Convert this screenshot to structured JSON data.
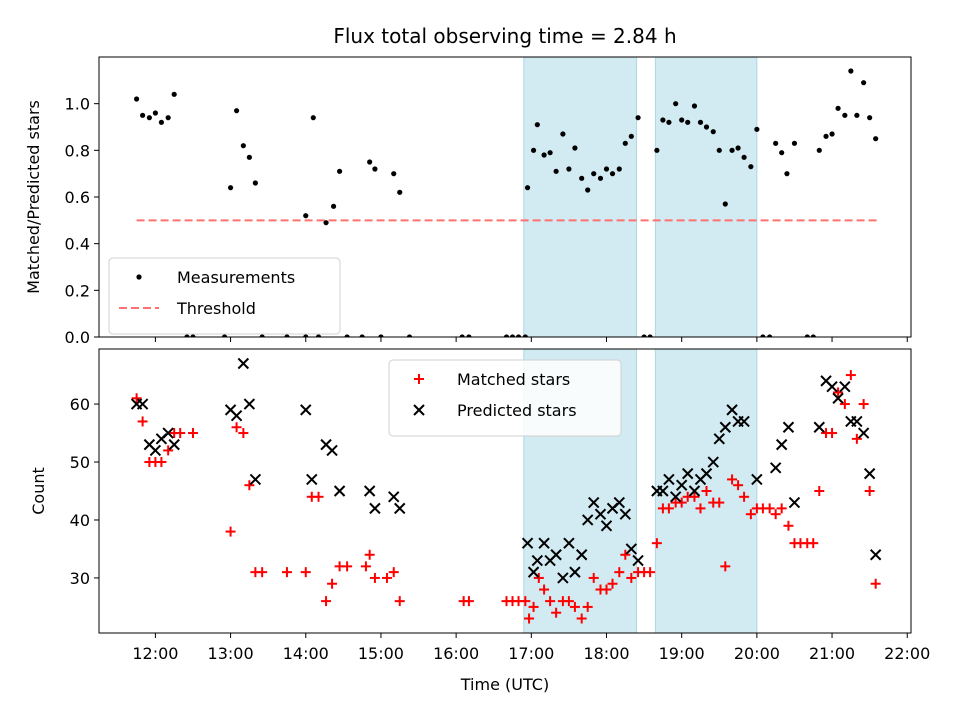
{
  "title": "Flux total observing time = 2.84 h",
  "xlabel": "Time (UTC)",
  "colors": {
    "band": "#add8e6",
    "threshold": "#ff7070",
    "matched": "#ff0000",
    "predicted": "#000000",
    "measurements": "#000000"
  },
  "chart_data": [
    {
      "type": "scatter",
      "panel": "top",
      "ylabel": "Matched/Predicted stars",
      "ylim": [
        0,
        1.2
      ],
      "xlim": [
        11.25,
        22.05
      ],
      "yticks": [
        0.0,
        0.2,
        0.4,
        0.6,
        0.8,
        1.0
      ],
      "yticklabels": [
        "0.0",
        "0.2",
        "0.4",
        "0.6",
        "0.8",
        "1.0"
      ],
      "legend_position": "lower-left",
      "threshold": {
        "name": "Threshold",
        "value": 0.5,
        "x_range": [
          11.75,
          21.6
        ]
      },
      "shaded_x_ranges": [
        [
          16.9,
          18.4
        ],
        [
          18.65,
          20.0
        ]
      ],
      "series": [
        {
          "name": "Measurements",
          "marker": "dot",
          "points": [
            [
              11.75,
              1.02
            ],
            [
              11.83,
              0.95
            ],
            [
              11.92,
              0.94
            ],
            [
              12.0,
              0.96
            ],
            [
              12.08,
              0.92
            ],
            [
              12.17,
              0.94
            ],
            [
              12.25,
              1.04
            ],
            [
              12.42,
              0.0
            ],
            [
              12.5,
              0.0
            ],
            [
              12.92,
              0.0
            ],
            [
              13.0,
              0.64
            ],
            [
              13.08,
              0.97
            ],
            [
              13.17,
              0.82
            ],
            [
              13.25,
              0.77
            ],
            [
              13.33,
              0.66
            ],
            [
              13.42,
              0.0
            ],
            [
              13.75,
              0.0
            ],
            [
              14.0,
              0.52
            ],
            [
              14.0,
              0.0
            ],
            [
              14.1,
              0.94
            ],
            [
              14.17,
              0.0
            ],
            [
              14.27,
              0.49
            ],
            [
              14.37,
              0.56
            ],
            [
              14.45,
              0.71
            ],
            [
              14.55,
              0.0
            ],
            [
              14.75,
              0.0
            ],
            [
              14.85,
              0.75
            ],
            [
              14.92,
              0.72
            ],
            [
              15.0,
              0.0
            ],
            [
              15.17,
              0.7
            ],
            [
              15.25,
              0.62
            ],
            [
              15.38,
              0.0
            ],
            [
              16.08,
              0.0
            ],
            [
              16.17,
              0.0
            ],
            [
              16.67,
              0.0
            ],
            [
              16.75,
              0.0
            ],
            [
              16.83,
              0.0
            ],
            [
              16.92,
              0.0
            ],
            [
              16.95,
              0.64
            ],
            [
              17.03,
              0.8
            ],
            [
              17.08,
              0.91
            ],
            [
              17.17,
              0.78
            ],
            [
              17.25,
              0.79
            ],
            [
              17.33,
              0.71
            ],
            [
              17.42,
              0.87
            ],
            [
              17.5,
              0.72
            ],
            [
              17.58,
              0.81
            ],
            [
              17.67,
              0.68
            ],
            [
              17.75,
              0.63
            ],
            [
              17.83,
              0.7
            ],
            [
              17.92,
              0.68
            ],
            [
              18.0,
              0.72
            ],
            [
              18.08,
              0.7
            ],
            [
              18.17,
              0.72
            ],
            [
              18.25,
              0.83
            ],
            [
              18.33,
              0.86
            ],
            [
              18.42,
              0.94
            ],
            [
              18.5,
              0.0
            ],
            [
              18.58,
              0.0
            ],
            [
              18.67,
              0.8
            ],
            [
              18.75,
              0.93
            ],
            [
              18.83,
              0.92
            ],
            [
              18.92,
              1.0
            ],
            [
              19.0,
              0.93
            ],
            [
              19.08,
              0.92
            ],
            [
              19.17,
              0.99
            ],
            [
              19.25,
              0.92
            ],
            [
              19.33,
              0.9
            ],
            [
              19.42,
              0.88
            ],
            [
              19.5,
              0.8
            ],
            [
              19.58,
              0.57
            ],
            [
              19.67,
              0.8
            ],
            [
              19.75,
              0.81
            ],
            [
              19.83,
              0.77
            ],
            [
              19.92,
              0.73
            ],
            [
              20.0,
              0.89
            ],
            [
              20.08,
              0.0
            ],
            [
              20.17,
              0.0
            ],
            [
              20.25,
              0.83
            ],
            [
              20.33,
              0.79
            ],
            [
              20.4,
              0.7
            ],
            [
              20.5,
              0.83
            ],
            [
              20.67,
              0.0
            ],
            [
              20.75,
              0.0
            ],
            [
              20.83,
              0.8
            ],
            [
              20.92,
              0.86
            ],
            [
              21.0,
              0.87
            ],
            [
              21.08,
              0.98
            ],
            [
              21.17,
              0.95
            ],
            [
              21.25,
              1.14
            ],
            [
              21.33,
              0.95
            ],
            [
              21.42,
              1.09
            ],
            [
              21.5,
              0.94
            ],
            [
              21.58,
              0.85
            ]
          ]
        }
      ]
    },
    {
      "type": "scatter",
      "panel": "bottom",
      "ylabel": "Count",
      "ylim": [
        20.5,
        69.5
      ],
      "xlim": [
        11.25,
        22.05
      ],
      "yticks": [
        30,
        40,
        50,
        60
      ],
      "yticklabels": [
        "30",
        "40",
        "50",
        "60"
      ],
      "xticks": [
        12,
        13,
        14,
        15,
        16,
        17,
        18,
        19,
        20,
        21,
        22
      ],
      "xticklabels": [
        "12:00",
        "13:00",
        "14:00",
        "15:00",
        "16:00",
        "17:00",
        "18:00",
        "19:00",
        "20:00",
        "21:00",
        "22:00"
      ],
      "legend_position": "upper-center",
      "shaded_x_ranges": [
        [
          16.9,
          18.4
        ],
        [
          18.65,
          20.0
        ]
      ],
      "series": [
        {
          "name": "Matched stars",
          "marker": "plus",
          "points": [
            [
              11.75,
              61
            ],
            [
              11.83,
              57
            ],
            [
              11.92,
              50
            ],
            [
              12.0,
              50
            ],
            [
              12.08,
              50
            ],
            [
              12.17,
              52
            ],
            [
              12.25,
              55
            ],
            [
              12.33,
              55
            ],
            [
              12.5,
              55
            ],
            [
              13.0,
              38
            ],
            [
              13.08,
              56
            ],
            [
              13.17,
              55
            ],
            [
              13.25,
              46
            ],
            [
              13.33,
              31
            ],
            [
              13.42,
              31
            ],
            [
              13.75,
              31
            ],
            [
              14.0,
              31
            ],
            [
              14.08,
              44
            ],
            [
              14.17,
              44
            ],
            [
              14.27,
              26
            ],
            [
              14.35,
              29
            ],
            [
              14.45,
              32
            ],
            [
              14.55,
              32
            ],
            [
              14.8,
              32
            ],
            [
              14.85,
              34
            ],
            [
              14.92,
              30
            ],
            [
              15.08,
              30
            ],
            [
              15.17,
              31
            ],
            [
              15.25,
              26
            ],
            [
              16.1,
              26
            ],
            [
              16.17,
              26
            ],
            [
              16.67,
              26
            ],
            [
              16.75,
              26
            ],
            [
              16.83,
              26
            ],
            [
              16.92,
              26
            ],
            [
              16.97,
              23
            ],
            [
              17.03,
              25
            ],
            [
              17.1,
              30
            ],
            [
              17.17,
              28
            ],
            [
              17.25,
              26
            ],
            [
              17.33,
              24
            ],
            [
              17.42,
              26
            ],
            [
              17.5,
              26
            ],
            [
              17.58,
              25
            ],
            [
              17.67,
              23
            ],
            [
              17.75,
              25
            ],
            [
              17.83,
              30
            ],
            [
              17.92,
              28
            ],
            [
              18.0,
              28
            ],
            [
              18.08,
              29
            ],
            [
              18.17,
              31
            ],
            [
              18.25,
              34
            ],
            [
              18.33,
              30
            ],
            [
              18.42,
              31
            ],
            [
              18.5,
              31
            ],
            [
              18.58,
              31
            ],
            [
              18.67,
              36
            ],
            [
              18.75,
              42
            ],
            [
              18.83,
              42
            ],
            [
              18.92,
              43
            ],
            [
              19.0,
              43
            ],
            [
              19.08,
              44
            ],
            [
              19.17,
              44
            ],
            [
              19.25,
              42
            ],
            [
              19.33,
              45
            ],
            [
              19.42,
              43
            ],
            [
              19.5,
              43
            ],
            [
              19.58,
              32
            ],
            [
              19.67,
              47
            ],
            [
              19.75,
              46
            ],
            [
              19.83,
              44
            ],
            [
              19.92,
              41
            ],
            [
              20.0,
              42
            ],
            [
              20.08,
              42
            ],
            [
              20.17,
              42
            ],
            [
              20.25,
              41
            ],
            [
              20.33,
              42
            ],
            [
              20.42,
              39
            ],
            [
              20.5,
              36
            ],
            [
              20.58,
              36
            ],
            [
              20.67,
              36
            ],
            [
              20.75,
              36
            ],
            [
              20.83,
              45
            ],
            [
              20.92,
              55
            ],
            [
              21.0,
              55
            ],
            [
              21.08,
              62
            ],
            [
              21.17,
              60
            ],
            [
              21.25,
              65
            ],
            [
              21.33,
              54
            ],
            [
              21.42,
              60
            ],
            [
              21.5,
              45
            ],
            [
              21.58,
              29
            ]
          ]
        },
        {
          "name": "Predicted stars",
          "marker": "x",
          "points": [
            [
              11.75,
              60
            ],
            [
              11.83,
              60
            ],
            [
              11.92,
              53
            ],
            [
              12.0,
              52
            ],
            [
              12.08,
              54
            ],
            [
              12.17,
              55
            ],
            [
              12.25,
              53
            ],
            [
              13.0,
              59
            ],
            [
              13.08,
              58
            ],
            [
              13.17,
              67
            ],
            [
              13.25,
              60
            ],
            [
              13.33,
              47
            ],
            [
              14.0,
              59
            ],
            [
              14.08,
              47
            ],
            [
              14.27,
              53
            ],
            [
              14.35,
              52
            ],
            [
              14.45,
              45
            ],
            [
              14.85,
              45
            ],
            [
              14.92,
              42
            ],
            [
              15.17,
              44
            ],
            [
              15.25,
              42
            ],
            [
              16.95,
              36
            ],
            [
              17.03,
              31
            ],
            [
              17.08,
              33
            ],
            [
              17.17,
              36
            ],
            [
              17.25,
              33
            ],
            [
              17.33,
              34
            ],
            [
              17.42,
              30
            ],
            [
              17.5,
              36
            ],
            [
              17.58,
              31
            ],
            [
              17.67,
              34
            ],
            [
              17.75,
              40
            ],
            [
              17.83,
              43
            ],
            [
              17.92,
              41
            ],
            [
              18.0,
              39
            ],
            [
              18.08,
              42
            ],
            [
              18.17,
              43
            ],
            [
              18.25,
              41
            ],
            [
              18.33,
              35
            ],
            [
              18.42,
              33
            ],
            [
              18.67,
              45
            ],
            [
              18.75,
              45
            ],
            [
              18.83,
              47
            ],
            [
              18.92,
              44
            ],
            [
              19.0,
              46
            ],
            [
              19.08,
              48
            ],
            [
              19.17,
              45
            ],
            [
              19.25,
              47
            ],
            [
              19.33,
              48
            ],
            [
              19.42,
              50
            ],
            [
              19.5,
              54
            ],
            [
              19.58,
              56
            ],
            [
              19.67,
              59
            ],
            [
              19.75,
              57
            ],
            [
              19.83,
              57
            ],
            [
              20.0,
              47
            ],
            [
              20.25,
              49
            ],
            [
              20.33,
              53
            ],
            [
              20.42,
              56
            ],
            [
              20.5,
              43
            ],
            [
              20.83,
              56
            ],
            [
              20.92,
              64
            ],
            [
              21.0,
              63
            ],
            [
              21.08,
              61
            ],
            [
              21.17,
              63
            ],
            [
              21.25,
              57
            ],
            [
              21.33,
              57
            ],
            [
              21.42,
              55
            ],
            [
              21.5,
              48
            ],
            [
              21.58,
              34
            ]
          ]
        }
      ]
    }
  ]
}
